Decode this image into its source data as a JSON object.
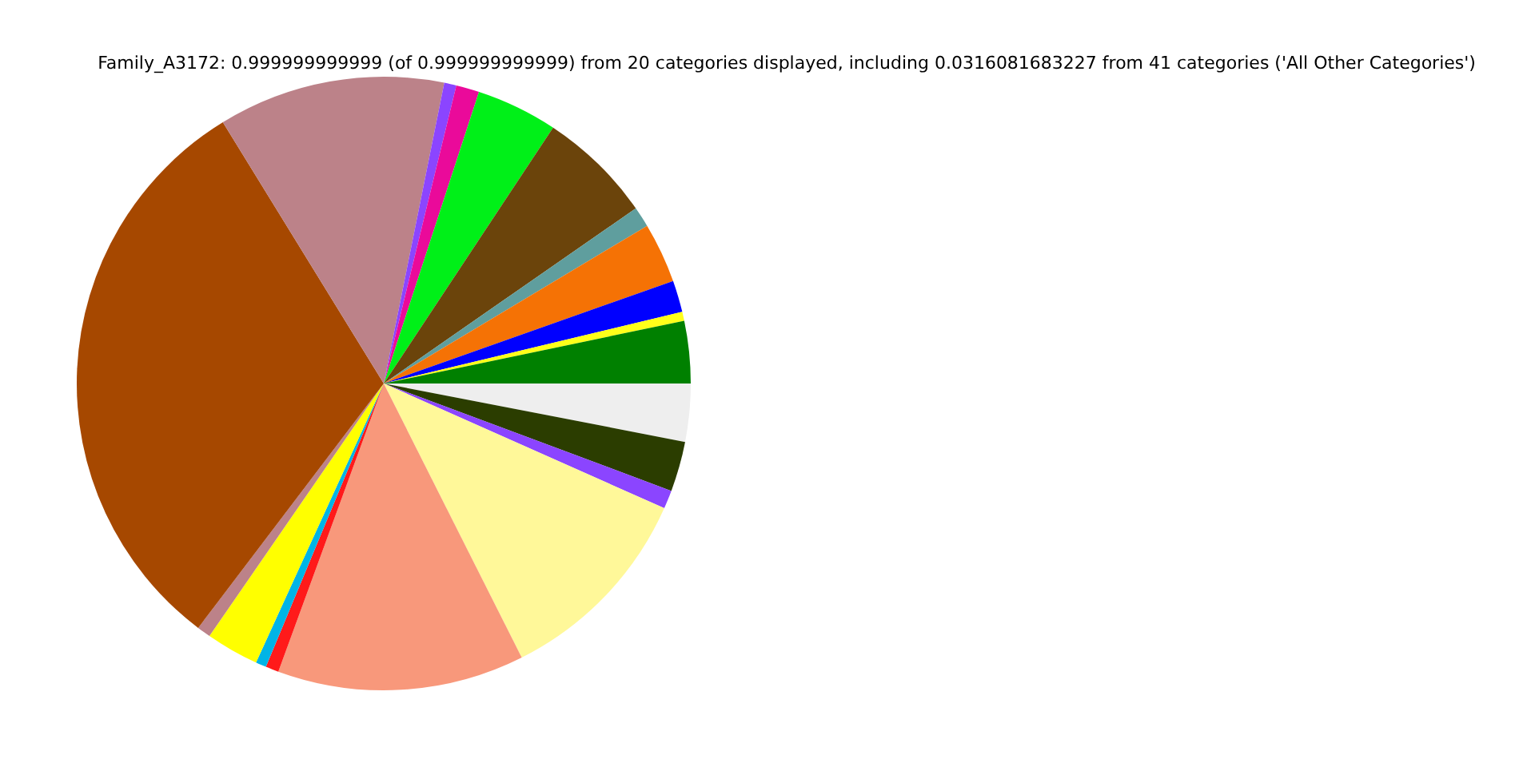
{
  "chart_data": {
    "type": "pie",
    "title": "Family_A3172: 0.999999999999 (of 0.999999999999) from 20 categories displayed, including 0.0316081683227 from 41 categories ('All Other Categories')",
    "categories": [
      null,
      null,
      null,
      null,
      null,
      null,
      null,
      null,
      null,
      null,
      null,
      null,
      null,
      null,
      null,
      null,
      null,
      null,
      null,
      null
    ],
    "values": [
      3.05,
      2.64,
      0.97,
      10.92,
      13.0,
      0.69,
      0.56,
      2.78,
      0.72,
      30.89,
      11.94,
      0.64,
      1.22,
      4.28,
      6.03,
      1.08,
      3.17,
      1.67,
      0.47,
      3.28
    ],
    "colors": [
      "#eeeeee",
      "#2b3d00",
      "#8b45ff",
      "#fff899",
      "#f8987b",
      "#ff1a1a",
      "#00b4e6",
      "#ffff00",
      "#bc8289",
      "#a64800",
      "#bc8289",
      "#8b45ff",
      "#ea0a9a",
      "#00f018",
      "#6b440b",
      "#5f9e9e",
      "#f57205",
      "#0000ff",
      "#ffff1a",
      "#008000"
    ],
    "legend": false
  }
}
